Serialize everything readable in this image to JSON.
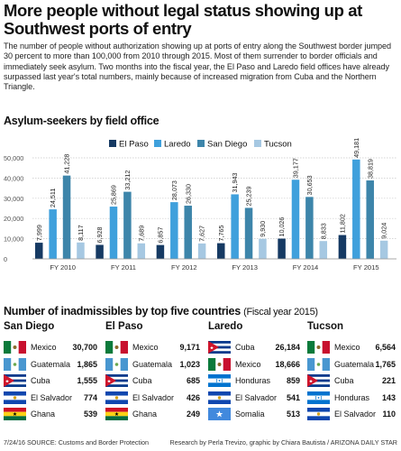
{
  "headline": "More people without legal status showing up at Southwest ports of entry",
  "intro": "The number of people without authorization showing up at ports of entry along the Southwest border jumped 30 percent to more than 100,000 from 2010 through 2015. Most of them surrender to border officials and immediately seek asylum. Two months into the fiscal year, the El Paso and Laredo field offices have already surpassed last year's total numbers, mainly because of increased migration from Cuba and the Northern Triangle.",
  "chart_data": {
    "type": "bar",
    "title": "Asylum-seekers by field office",
    "categories": [
      "FY 2010",
      "FY 2011",
      "FY 2012",
      "FY 2013",
      "FY 2014",
      "FY 2015"
    ],
    "series": [
      {
        "name": "El Paso",
        "color": "#163a63",
        "values": [
          7999,
          6928,
          6857,
          7765,
          10026,
          11802
        ],
        "labels": [
          "7,999",
          "6,928",
          "6,857",
          "7,765",
          "10,026",
          "11,802"
        ]
      },
      {
        "name": "Laredo",
        "color": "#3fa0dc",
        "values": [
          24511,
          25869,
          28073,
          31943,
          39177,
          49181
        ],
        "labels": [
          "24,511",
          "25,869",
          "28,073",
          "31,943",
          "39,177",
          "49,181"
        ]
      },
      {
        "name": "San Diego",
        "color": "#3d85aa",
        "values": [
          41228,
          33212,
          26330,
          25239,
          30653,
          38819
        ],
        "labels": [
          "41,228",
          "33,212",
          "26,330",
          "25,239",
          "30,653",
          "38,819"
        ]
      },
      {
        "name": "Tucson",
        "color": "#a6c8e2",
        "values": [
          8117,
          7689,
          7627,
          9930,
          8833,
          9024
        ],
        "labels": [
          "8,117",
          "7,689",
          "7,627",
          "9,930",
          "8,833",
          "9,024"
        ]
      }
    ],
    "ylim": [
      0,
      50000
    ],
    "yticks": [
      0,
      10000,
      20000,
      30000,
      40000,
      50000
    ],
    "ytick_labels": [
      "0",
      "10,000",
      "20,000",
      "30,000",
      "40,000",
      "50,000"
    ],
    "grid": true,
    "legend_position": "top-center"
  },
  "inadmissibles": {
    "title": "Number of inadmissibles by top five countries",
    "subtitle": "(Fiscal year 2015)",
    "offices": [
      {
        "name": "San Diego",
        "rows": [
          {
            "country": "Mexico",
            "value": "30,700",
            "flag": "mexico"
          },
          {
            "country": "Guatemala",
            "value": "1,865",
            "flag": "guatemala"
          },
          {
            "country": "Cuba",
            "value": "1,555",
            "flag": "cuba"
          },
          {
            "country": "El Salvador",
            "value": "774",
            "flag": "el-salvador"
          },
          {
            "country": "Ghana",
            "value": "539",
            "flag": "ghana"
          }
        ]
      },
      {
        "name": "El Paso",
        "rows": [
          {
            "country": "Mexico",
            "value": "9,171",
            "flag": "mexico"
          },
          {
            "country": "Guatemala",
            "value": "1,023",
            "flag": "guatemala"
          },
          {
            "country": "Cuba",
            "value": "685",
            "flag": "cuba"
          },
          {
            "country": "El Salvador",
            "value": "426",
            "flag": "el-salvador"
          },
          {
            "country": "Ghana",
            "value": "249",
            "flag": "ghana"
          }
        ]
      },
      {
        "name": "Laredo",
        "rows": [
          {
            "country": "Cuba",
            "value": "26,184",
            "flag": "cuba"
          },
          {
            "country": "Mexico",
            "value": "18,666",
            "flag": "mexico"
          },
          {
            "country": "Honduras",
            "value": "859",
            "flag": "honduras"
          },
          {
            "country": "El Salvador",
            "value": "541",
            "flag": "el-salvador"
          },
          {
            "country": "Somalia",
            "value": "513",
            "flag": "somalia"
          }
        ]
      },
      {
        "name": "Tucson",
        "rows": [
          {
            "country": "Mexico",
            "value": "6,564",
            "flag": "mexico"
          },
          {
            "country": "Guatemala",
            "value": "1,765",
            "flag": "guatemala"
          },
          {
            "country": "Cuba",
            "value": "221",
            "flag": "cuba"
          },
          {
            "country": "Honduras",
            "value": "143",
            "flag": "honduras"
          },
          {
            "country": "El Salvador",
            "value": "110",
            "flag": "el-salvador"
          }
        ]
      }
    ]
  },
  "footer": {
    "left": "7/24/16 SOURCE: Customs and Border Protection",
    "right": "Research by Perla Trevizo, graphic by Chiara Bautista / ARIZONA DAILY STAR"
  }
}
